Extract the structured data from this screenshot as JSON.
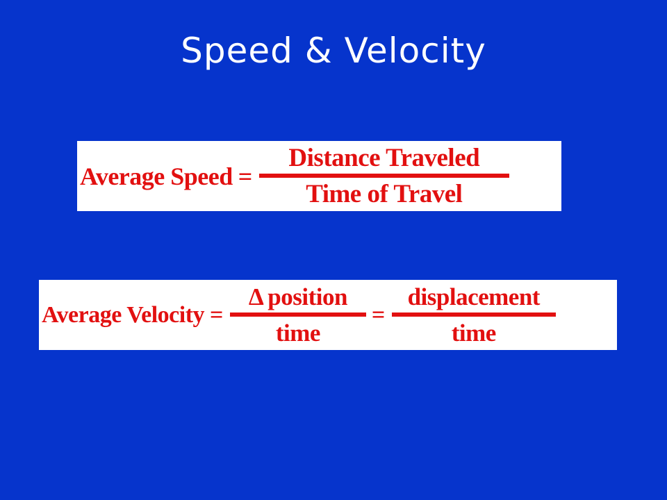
{
  "slide": {
    "title": "Speed & Velocity"
  },
  "speed_formula": {
    "lhs": "Average Speed",
    "equals": "=",
    "numerator": "Distance Traveled",
    "denominator": "Time of Travel"
  },
  "velocity_formula": {
    "lhs": "Average Velocity",
    "equals_1": "=",
    "numerator_1": "position",
    "delta_symbol": "Δ",
    "denominator_1": "time",
    "equals_2": "=",
    "numerator_2": "displacement",
    "denominator_2": "time"
  },
  "colors": {
    "background": "#0634cc",
    "title_text": "#ffffff",
    "formula_text": "#e21010",
    "formula_background": "#ffffff"
  }
}
